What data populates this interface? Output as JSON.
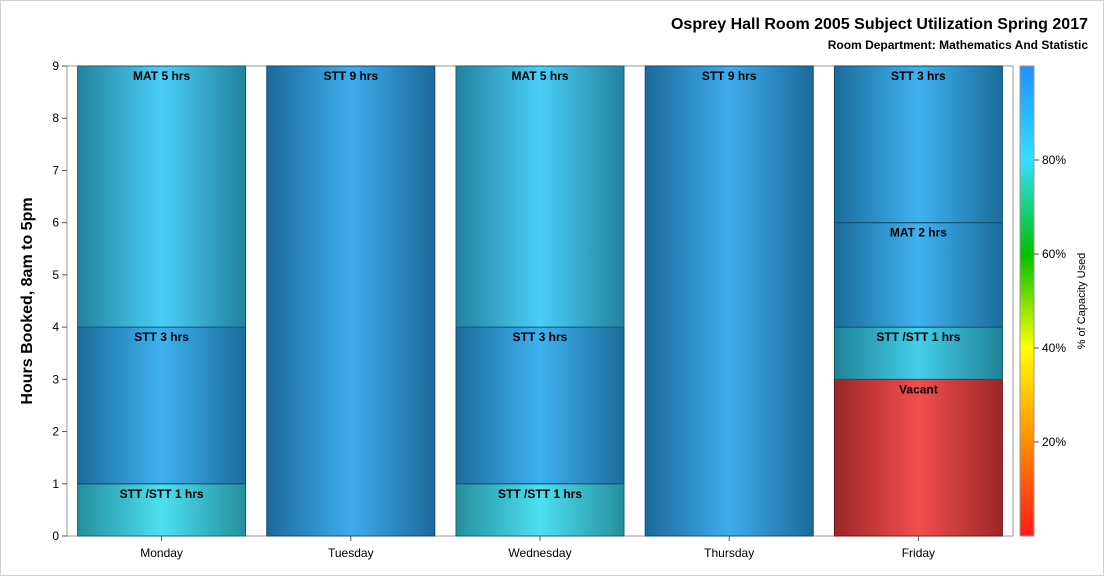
{
  "title": "Osprey Hall Room 2005 Subject Utilization Spring 2017",
  "subtitle": "Room Department:  Mathematics And Statistic",
  "chart_data": {
    "type": "bar",
    "stacked": true,
    "categories": [
      "Monday",
      "Tuesday",
      "Wednesday",
      "Thursday",
      "Friday"
    ],
    "ylabel": "Hours Booked, 8am to 5pm",
    "ylim": [
      0,
      9
    ],
    "yticks": [
      "0",
      "1",
      "2",
      "3",
      "4",
      "5",
      "6",
      "7",
      "8",
      "9"
    ],
    "grid": false,
    "colorbar": {
      "label": "% of Capacity Used",
      "ticks": [
        {
          "value": 20,
          "label": "20%"
        },
        {
          "value": 40,
          "label": "40%"
        },
        {
          "value": 60,
          "label": "60%"
        },
        {
          "value": 80,
          "label": "80%"
        }
      ],
      "range": [
        0,
        100
      ],
      "colors": [
        "#ff1a1a",
        "#ff8c00",
        "#ffff00",
        "#00c000",
        "#33e0ff",
        "#1e90ff"
      ]
    },
    "stacks": [
      {
        "category": "Monday",
        "segments": [
          {
            "label": "STT /STT 1 hrs",
            "hours": 1,
            "color": "#38dcf0"
          },
          {
            "label": "STT 3 hrs",
            "hours": 3,
            "color": "#2aa8ee"
          },
          {
            "label": "MAT 5 hrs",
            "hours": 5,
            "color": "#36c8f6"
          }
        ]
      },
      {
        "category": "Tuesday",
        "segments": [
          {
            "label": "STT 9 hrs",
            "hours": 9,
            "color": "#2aa3ec"
          }
        ]
      },
      {
        "category": "Wednesday",
        "segments": [
          {
            "label": "STT /STT 1 hrs",
            "hours": 1,
            "color": "#38dcf0"
          },
          {
            "label": "STT 3 hrs",
            "hours": 3,
            "color": "#2aa8ee"
          },
          {
            "label": "MAT 5 hrs",
            "hours": 5,
            "color": "#36c8f6"
          }
        ]
      },
      {
        "category": "Thursday",
        "segments": [
          {
            "label": "STT 9 hrs",
            "hours": 9,
            "color": "#2aa3ec"
          }
        ]
      },
      {
        "category": "Friday",
        "segments": [
          {
            "label": "Vacant",
            "hours": 3,
            "color": "#f03a3a"
          },
          {
            "label": "STT /STT 1 hrs",
            "hours": 1,
            "color": "#30c8e8"
          },
          {
            "label": "MAT 2 hrs",
            "hours": 2,
            "color": "#2aa8ee"
          },
          {
            "label": "STT 3 hrs",
            "hours": 3,
            "color": "#2aa8ee"
          }
        ]
      }
    ]
  }
}
